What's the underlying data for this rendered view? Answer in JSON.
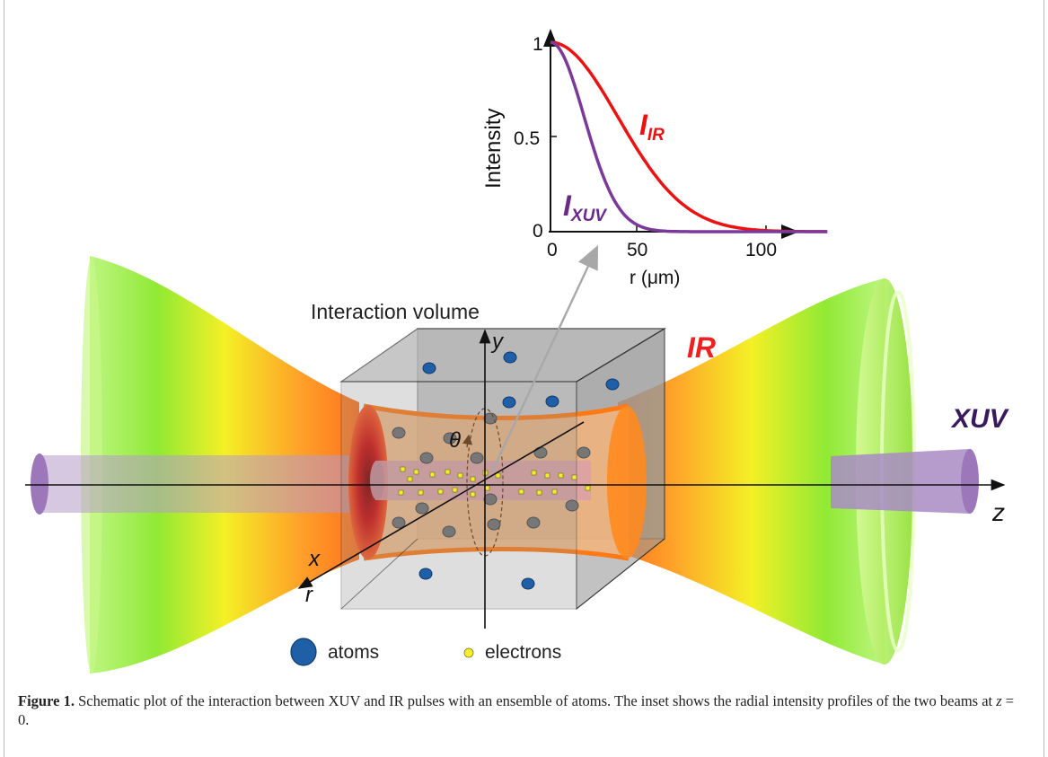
{
  "figure": {
    "inset": {
      "ylabel": "Intensity",
      "xlabel": "r (μm)",
      "y_ticks": [
        "0",
        "0.5",
        "1"
      ],
      "x_ticks": [
        "0",
        "50",
        "100"
      ],
      "label_ir_main": "I",
      "label_ir_sub": "IR",
      "label_xuv_main": "I",
      "label_xuv_sub": "XUV",
      "colors": {
        "ir": "#ee1111",
        "xuv": "#7b3a9a"
      }
    },
    "scene": {
      "volume_label": "Interaction volume",
      "ir_label": "IR",
      "xuv_label": "XUV",
      "axis_y": "y",
      "axis_x": "x",
      "axis_z": "z",
      "axis_r": "r",
      "axis_theta": "θ",
      "legend_atoms": "atoms",
      "legend_electrons": "electrons",
      "colors": {
        "ir_text": "#ee2020",
        "xuv_text": "#3a1a5e",
        "atom": "#1f5fa8",
        "electron": "#f4ee2c"
      }
    }
  },
  "caption": {
    "label": "Figure 1.",
    "text_before": " Schematic plot of the interaction between XUV and IR pulses with an ensemble of atoms. The inset shows the radial intensity profiles of the two beams at ",
    "math": "z",
    "text_eq": " = 0",
    "text_end": "."
  }
}
